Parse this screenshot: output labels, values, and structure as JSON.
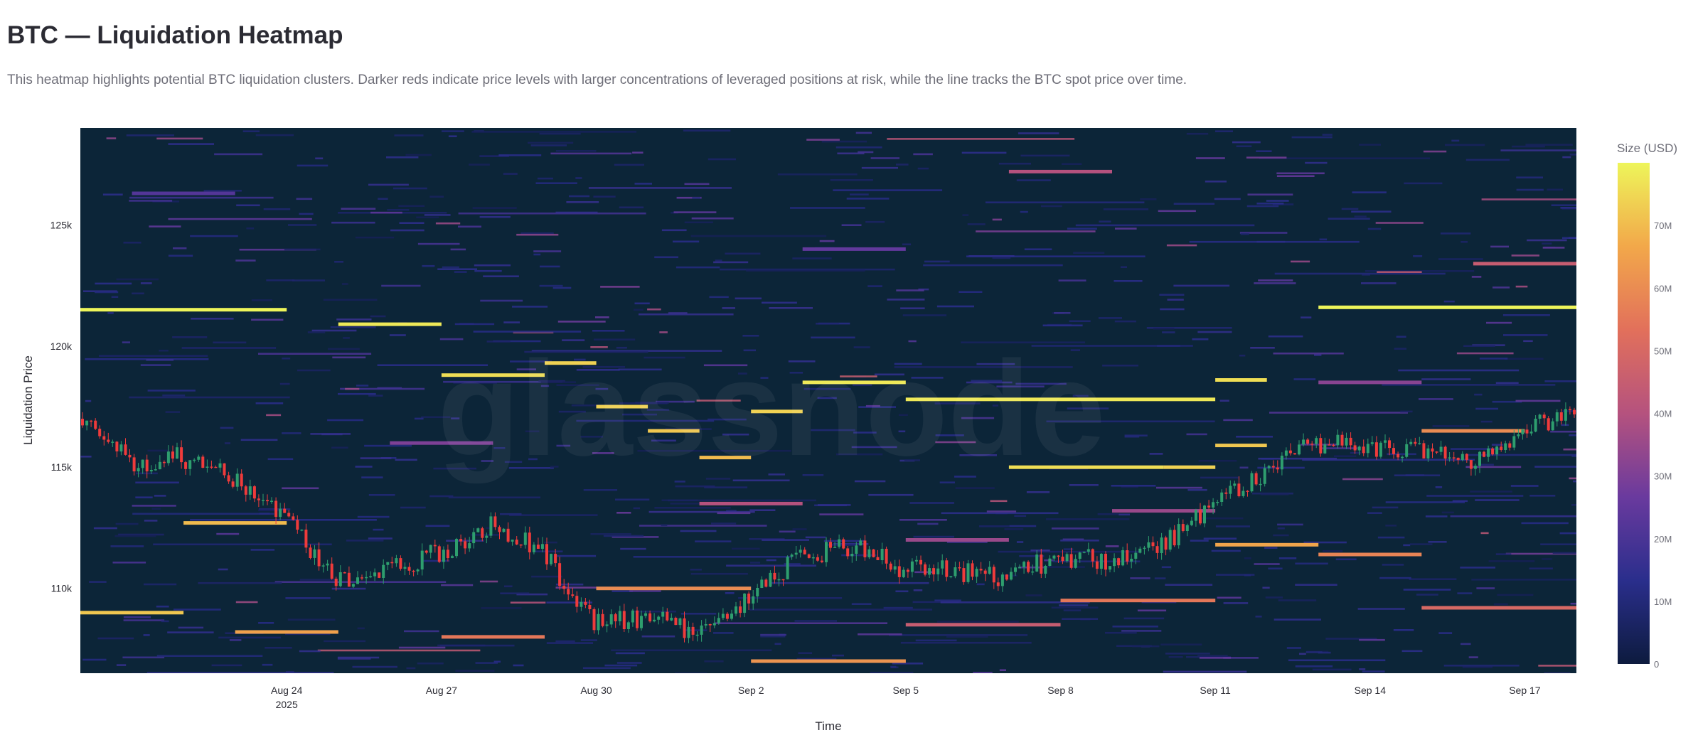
{
  "header": {
    "title": "BTC — Liquidation Heatmap",
    "description": "This heatmap highlights potential BTC liquidation clusters. Darker reds indicate price levels with larger concentrations of leveraged positions at risk, while the line tracks the BTC spot price over time."
  },
  "watermark": "glassnode",
  "colors": {
    "background": "#0c2538",
    "candle_up": "#2e9e6e",
    "candle_down": "#ef3b3b",
    "colorscale": [
      "#0d1b3e",
      "#2a2e8c",
      "#6a3a9e",
      "#b5527e",
      "#e2705b",
      "#f2a84a",
      "#eef55a"
    ]
  },
  "chart_data": {
    "type": "heatmap",
    "title": "",
    "xlabel": "Time",
    "ylabel": "Liquidation Price",
    "colorbar_title": "Size (USD)",
    "colorbar_range": [
      0,
      80000000
    ],
    "colorbar_ticks": [
      {
        "value": 0,
        "label": "0"
      },
      {
        "value": 10000000,
        "label": "10M"
      },
      {
        "value": 20000000,
        "label": "20M"
      },
      {
        "value": 30000000,
        "label": "30M"
      },
      {
        "value": 40000000,
        "label": "40M"
      },
      {
        "value": 50000000,
        "label": "50M"
      },
      {
        "value": 60000000,
        "label": "60M"
      },
      {
        "value": 70000000,
        "label": "70M"
      }
    ],
    "x_range": [
      "2025-08-20",
      "2025-09-18"
    ],
    "y_range": [
      106500,
      129000
    ],
    "x_ticks": [
      {
        "date": "2025-08-24",
        "label": "Aug 24",
        "sublabel": "2025"
      },
      {
        "date": "2025-08-27",
        "label": "Aug 27"
      },
      {
        "date": "2025-08-30",
        "label": "Aug 30"
      },
      {
        "date": "2025-09-02",
        "label": "Sep 2"
      },
      {
        "date": "2025-09-05",
        "label": "Sep 5"
      },
      {
        "date": "2025-09-08",
        "label": "Sep 8"
      },
      {
        "date": "2025-09-11",
        "label": "Sep 11"
      },
      {
        "date": "2025-09-14",
        "label": "Sep 14"
      },
      {
        "date": "2025-09-17",
        "label": "Sep 17"
      }
    ],
    "y_ticks": [
      {
        "value": 110000,
        "label": "110k"
      },
      {
        "value": 115000,
        "label": "115k"
      },
      {
        "value": 120000,
        "label": "120k"
      },
      {
        "value": 125000,
        "label": "125k"
      }
    ],
    "price_series": [
      {
        "date": "2025-08-20",
        "price": 117000
      },
      {
        "date": "2025-08-21",
        "price": 115200
      },
      {
        "date": "2025-08-22",
        "price": 115400
      },
      {
        "date": "2025-08-23",
        "price": 114600
      },
      {
        "date": "2025-08-24",
        "price": 113000
      },
      {
        "date": "2025-08-25",
        "price": 110300
      },
      {
        "date": "2025-08-26",
        "price": 110800
      },
      {
        "date": "2025-08-27",
        "price": 111500
      },
      {
        "date": "2025-08-28",
        "price": 112600
      },
      {
        "date": "2025-08-29",
        "price": 111500
      },
      {
        "date": "2025-08-30",
        "price": 108600
      },
      {
        "date": "2025-08-31",
        "price": 108800
      },
      {
        "date": "2025-09-01",
        "price": 108200
      },
      {
        "date": "2025-09-02",
        "price": 109600
      },
      {
        "date": "2025-09-03",
        "price": 111300
      },
      {
        "date": "2025-09-04",
        "price": 111800
      },
      {
        "date": "2025-09-05",
        "price": 110800
      },
      {
        "date": "2025-09-06",
        "price": 110700
      },
      {
        "date": "2025-09-07",
        "price": 110500
      },
      {
        "date": "2025-09-08",
        "price": 111300
      },
      {
        "date": "2025-09-09",
        "price": 111200
      },
      {
        "date": "2025-09-10",
        "price": 111800
      },
      {
        "date": "2025-09-11",
        "price": 113500
      },
      {
        "date": "2025-09-12",
        "price": 114800
      },
      {
        "date": "2025-09-13",
        "price": 116000
      },
      {
        "date": "2025-09-14",
        "price": 115800
      },
      {
        "date": "2025-09-15",
        "price": 115600
      },
      {
        "date": "2025-09-16",
        "price": 115200
      },
      {
        "date": "2025-09-17",
        "price": 116500
      },
      {
        "date": "2025-09-18",
        "price": 117200
      }
    ],
    "liquidation_levels": [
      {
        "start": "2025-08-20",
        "end": "2025-08-24",
        "price": 121500,
        "size": 80000000
      },
      {
        "start": "2025-08-25",
        "end": "2025-08-27",
        "price": 120900,
        "size": 78000000
      },
      {
        "start": "2025-08-27",
        "end": "2025-08-29",
        "price": 118800,
        "size": 76000000
      },
      {
        "start": "2025-08-29",
        "end": "2025-08-30",
        "price": 119300,
        "size": 74000000
      },
      {
        "start": "2025-08-30",
        "end": "2025-08-31",
        "price": 117500,
        "size": 74000000
      },
      {
        "start": "2025-08-31",
        "end": "2025-09-01",
        "price": 116500,
        "size": 72000000
      },
      {
        "start": "2025-09-01",
        "end": "2025-09-02",
        "price": 115400,
        "size": 70000000
      },
      {
        "start": "2025-09-02",
        "end": "2025-09-03",
        "price": 117300,
        "size": 74000000
      },
      {
        "start": "2025-09-03",
        "end": "2025-09-05",
        "price": 118500,
        "size": 78000000
      },
      {
        "start": "2025-09-05",
        "end": "2025-09-11",
        "price": 117800,
        "size": 78000000
      },
      {
        "start": "2025-09-07",
        "end": "2025-09-10",
        "price": 115000,
        "size": 76000000
      },
      {
        "start": "2025-09-10",
        "end": "2025-09-11",
        "price": 115000,
        "size": 74000000
      },
      {
        "start": "2025-09-11",
        "end": "2025-09-12",
        "price": 118600,
        "size": 76000000
      },
      {
        "start": "2025-09-11",
        "end": "2025-09-12",
        "price": 115900,
        "size": 72000000
      },
      {
        "start": "2025-09-13",
        "end": "2025-09-18",
        "price": 121600,
        "size": 80000000
      },
      {
        "start": "2025-09-15",
        "end": "2025-09-17",
        "price": 116500,
        "size": 60000000
      },
      {
        "start": "2025-08-20",
        "end": "2025-08-22",
        "price": 109000,
        "size": 72000000
      },
      {
        "start": "2025-08-22",
        "end": "2025-08-24",
        "price": 112700,
        "size": 70000000
      },
      {
        "start": "2025-08-23",
        "end": "2025-08-25",
        "price": 108200,
        "size": 65000000
      },
      {
        "start": "2025-08-27",
        "end": "2025-08-29",
        "price": 108000,
        "size": 55000000
      },
      {
        "start": "2025-08-30",
        "end": "2025-09-02",
        "price": 110000,
        "size": 60000000
      },
      {
        "start": "2025-09-02",
        "end": "2025-09-05",
        "price": 107000,
        "size": 62000000
      },
      {
        "start": "2025-09-05",
        "end": "2025-09-08",
        "price": 108500,
        "size": 45000000
      },
      {
        "start": "2025-09-08",
        "end": "2025-09-11",
        "price": 109500,
        "size": 55000000
      },
      {
        "start": "2025-09-11",
        "end": "2025-09-13",
        "price": 111800,
        "size": 66000000
      },
      {
        "start": "2025-09-13",
        "end": "2025-09-15",
        "price": 111400,
        "size": 58000000
      },
      {
        "start": "2025-09-15",
        "end": "2025-09-18",
        "price": 109200,
        "size": 50000000
      },
      {
        "start": "2025-09-16",
        "end": "2025-09-18",
        "price": 123400,
        "size": 45000000
      },
      {
        "start": "2025-09-01",
        "end": "2025-09-03",
        "price": 113500,
        "size": 40000000
      },
      {
        "start": "2025-09-05",
        "end": "2025-09-07",
        "price": 112000,
        "size": 35000000
      },
      {
        "start": "2025-09-09",
        "end": "2025-09-11",
        "price": 113200,
        "size": 35000000
      },
      {
        "start": "2025-08-26",
        "end": "2025-08-28",
        "price": 116000,
        "size": 30000000
      },
      {
        "start": "2025-09-03",
        "end": "2025-09-05",
        "price": 124000,
        "size": 25000000
      },
      {
        "start": "2025-09-07",
        "end": "2025-09-09",
        "price": 127200,
        "size": 40000000
      },
      {
        "start": "2025-08-21",
        "end": "2025-08-23",
        "price": 126300,
        "size": 22000000
      },
      {
        "start": "2025-09-13",
        "end": "2025-09-15",
        "price": 118500,
        "size": 32000000
      }
    ]
  }
}
